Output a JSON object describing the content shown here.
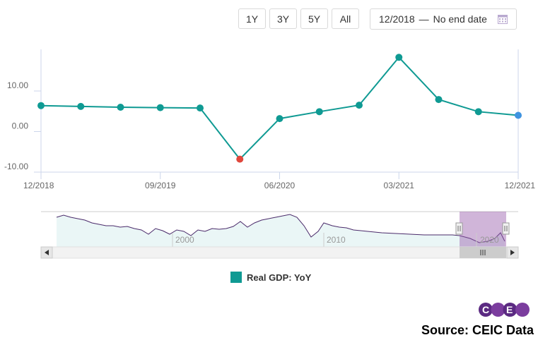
{
  "range_buttons": [
    "1Y",
    "3Y",
    "5Y",
    "All"
  ],
  "date_range": {
    "start": "12/2018",
    "separator": "—",
    "end": "No end date"
  },
  "chart_data": {
    "type": "line",
    "ylim": [
      -10,
      20
    ],
    "y_ticks": [
      "10.00",
      "0.00",
      "-10.00"
    ],
    "x_tick_labels": [
      "12/2018",
      "09/2019",
      "06/2020",
      "03/2021",
      "12/2021"
    ],
    "series": [
      {
        "name": "Real GDP: YoY",
        "color": "#0f9a93",
        "x": [
          "12/2018",
          "03/2019",
          "06/2019",
          "09/2019",
          "12/2019",
          "03/2020",
          "06/2020",
          "09/2020",
          "12/2020",
          "03/2021",
          "06/2021",
          "09/2021",
          "12/2021"
        ],
        "values": [
          6.4,
          6.2,
          6.0,
          5.9,
          5.8,
          -6.8,
          3.2,
          4.9,
          6.5,
          18.3,
          7.9,
          4.9,
          4.0
        ]
      }
    ],
    "min_point_color": "#e0473c",
    "last_point_color": "#3f93e0"
  },
  "navigator": {
    "year_labels": [
      "2000",
      "2010",
      "2020"
    ]
  },
  "legend": {
    "label": "Real GDP: YoY",
    "color": "#0f9a93"
  },
  "logo": {
    "text": "CEIC"
  },
  "source": "Source: CEIC Data"
}
